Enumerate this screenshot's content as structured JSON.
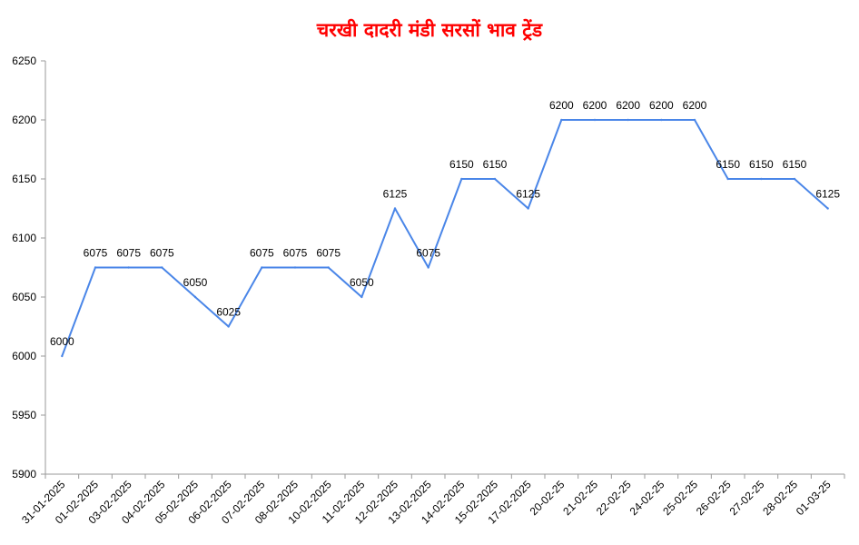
{
  "chart_data": {
    "type": "line",
    "title": "चरखी दादरी मंडी सरसों भाव ट्रेंड",
    "xlabel": "",
    "ylabel": "",
    "ylim": [
      5900,
      6250
    ],
    "yticks": [
      5900,
      5950,
      6000,
      6050,
      6100,
      6150,
      6200,
      6250
    ],
    "grid": false,
    "legend": "none",
    "categories": [
      "31-01-2025",
      "01-02-2025",
      "03-02-2025",
      "04-02-2025",
      "05-02-2025",
      "06-02-2025",
      "07-02-2025",
      "08-02-2025",
      "10-02-2025",
      "11-02-2025",
      "12-02-2025",
      "13-02-2025",
      "14-02-2025",
      "15-02-2025",
      "17-02-2025",
      "20-02-25",
      "21-02-25",
      "22-02-25",
      "24-02-25",
      "25-02-25",
      "26-02-25",
      "27-02-25",
      "28-02-25",
      "01-03-25"
    ],
    "series": [
      {
        "color": "#4a86e8",
        "values": [
          6000,
          6075,
          6075,
          6075,
          6050,
          6025,
          6075,
          6075,
          6075,
          6050,
          6125,
          6075,
          6150,
          6150,
          6125,
          6200,
          6200,
          6200,
          6200,
          6200,
          6150,
          6150,
          6150,
          6125
        ]
      }
    ]
  }
}
